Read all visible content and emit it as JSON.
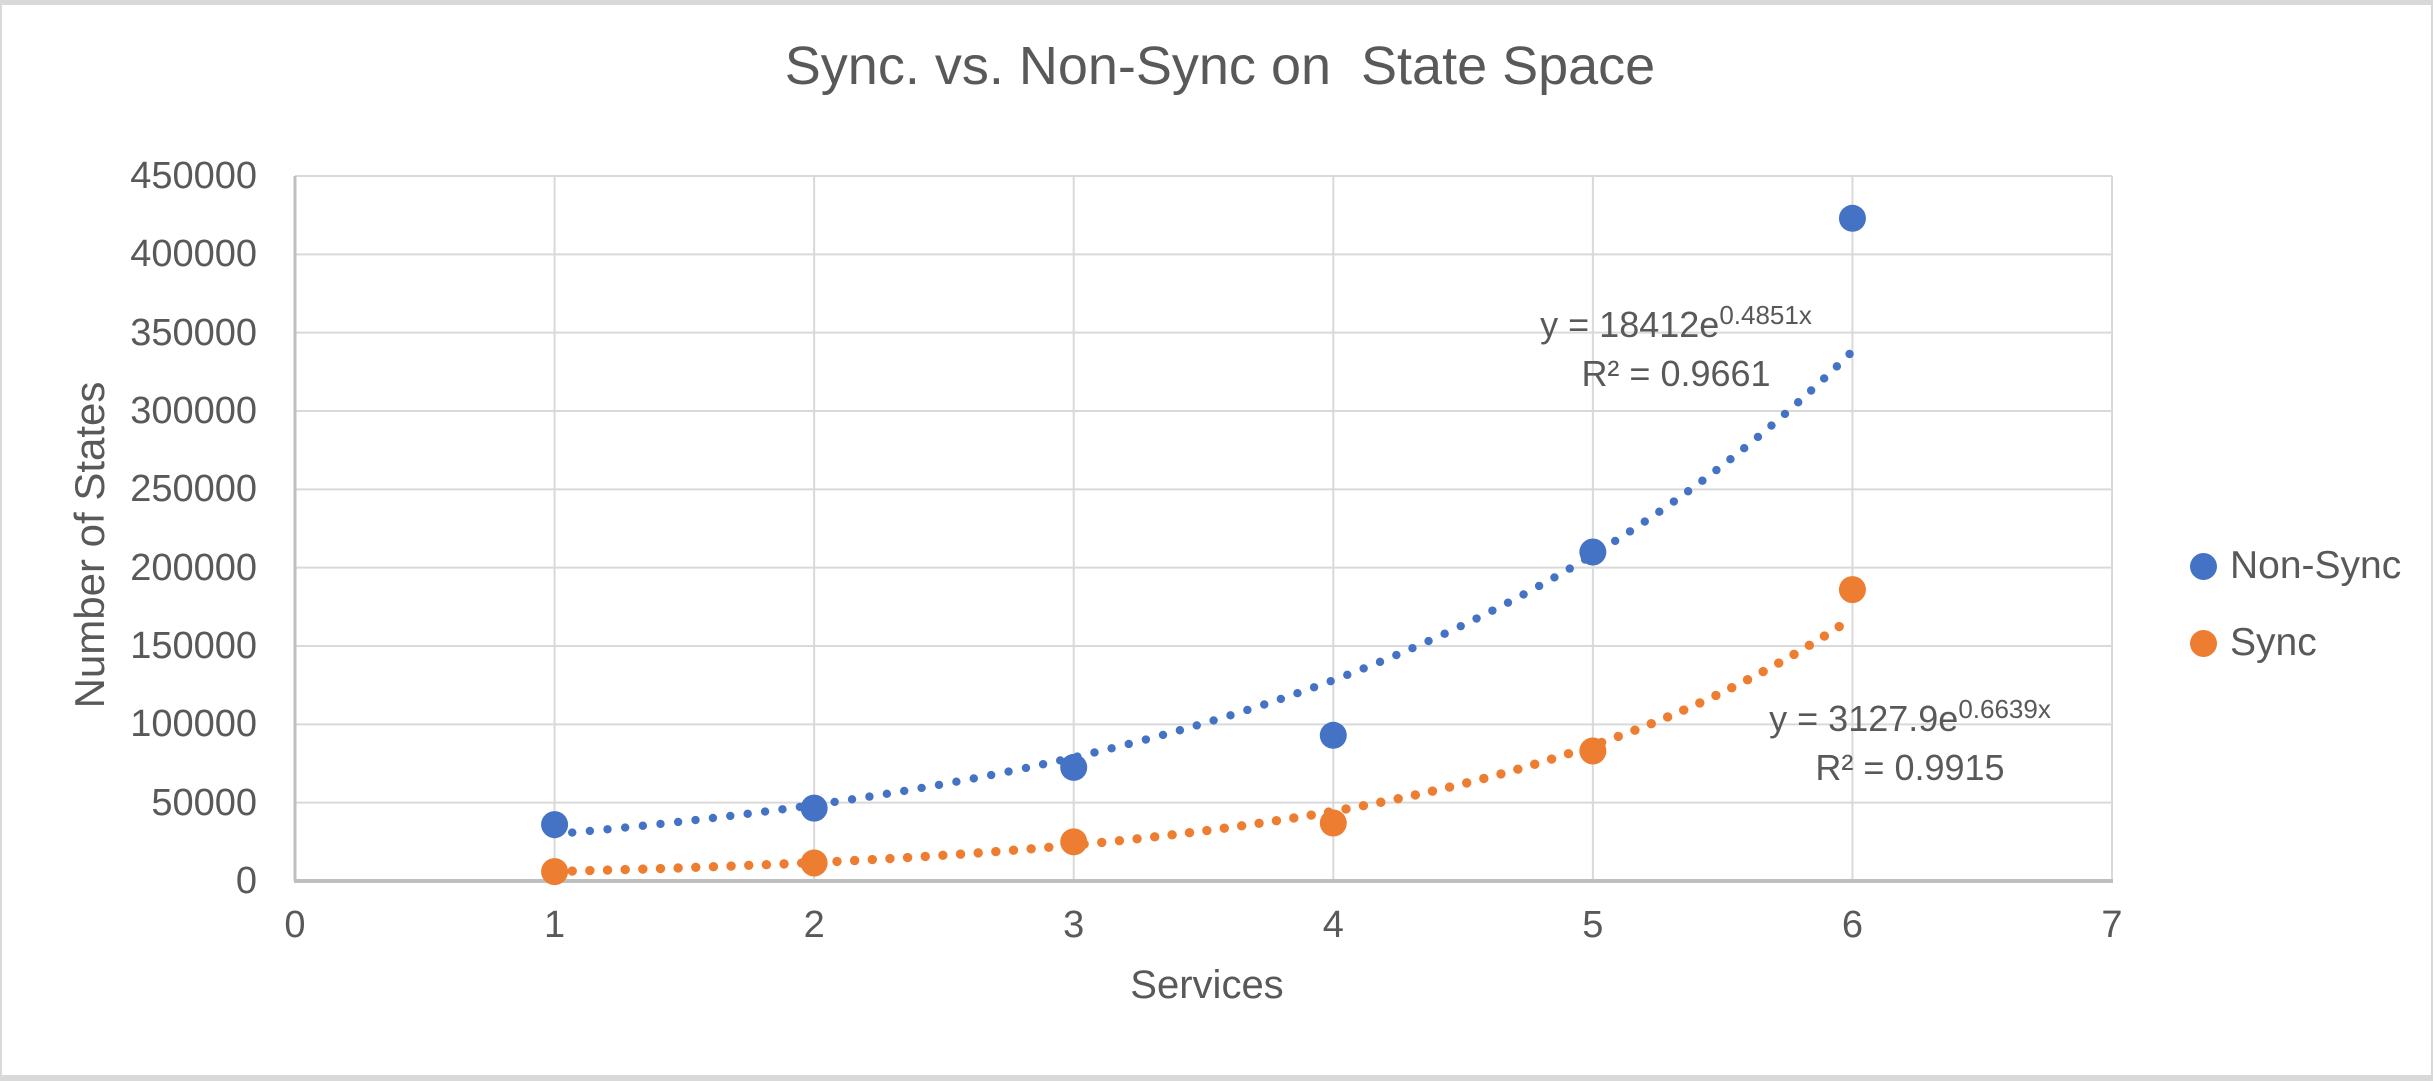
{
  "title": "Sync. vs. Non-Sync on  State Space",
  "colors": {
    "non_sync": "#4472C4",
    "sync": "#ED7D31",
    "text": "#595959",
    "gridline": "#D9D9D9",
    "axis_line": "#BFBFBF"
  },
  "chart_data": {
    "type": "scatter",
    "title": "Sync. vs. Non-Sync on  State Space",
    "xlabel": "Services",
    "ylabel": "Number of States",
    "xlim": [
      0,
      7
    ],
    "ylim": [
      0,
      450000
    ],
    "x_ticks": [
      0,
      1,
      2,
      3,
      4,
      5,
      6,
      7
    ],
    "y_ticks": [
      0,
      50000,
      100000,
      150000,
      200000,
      250000,
      300000,
      350000,
      400000,
      450000
    ],
    "grid": true,
    "legend_position": "right",
    "x": [
      1,
      2,
      3,
      4,
      5,
      6
    ],
    "series": [
      {
        "name": "Non-Sync",
        "color": "#4472C4",
        "values": [
          36000,
          46500,
          72500,
          93000,
          210000,
          423000
        ],
        "trendline": {
          "type": "exponential",
          "a": 18412,
          "b": 0.4851,
          "x_start": 1,
          "x_end": 6,
          "equation_prefix": "y = 18412e",
          "equation_exponent": "0.4851x",
          "r2": "R² = 0.9661"
        }
      },
      {
        "name": "Sync",
        "color": "#ED7D31",
        "values": [
          6000,
          11500,
          25000,
          37000,
          83000,
          186000
        ],
        "trendline": {
          "type": "exponential",
          "a": 3127.9,
          "b": 0.6639,
          "x_start": 1,
          "x_end": 6,
          "equation_prefix": "y = 3127.9e",
          "equation_exponent": "0.6639x",
          "r2": "R² = 0.9915"
        }
      }
    ]
  },
  "legend": {
    "items": [
      {
        "label": "Non-Sync",
        "color": "#4472C4"
      },
      {
        "label": "Sync",
        "color": "#ED7D31"
      }
    ]
  }
}
